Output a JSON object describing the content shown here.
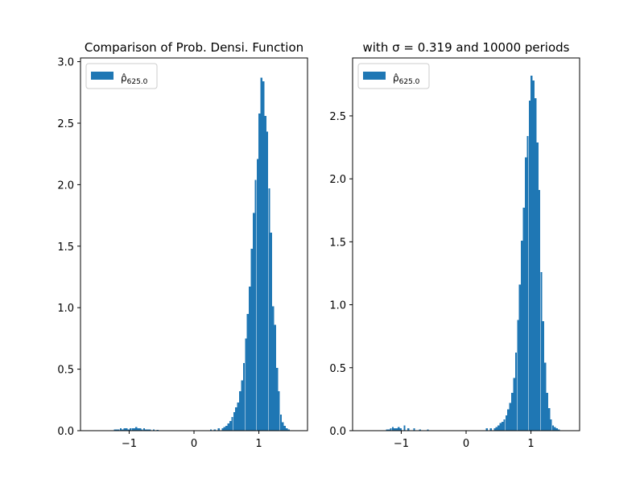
{
  "chart_data": [
    {
      "type": "bar",
      "title": "Comparison of Prob. Densi. Function",
      "xlim": [
        -1.75,
        1.75
      ],
      "ylim": [
        0,
        3.03
      ],
      "xticks": [
        -1,
        0,
        1
      ],
      "xtick_labels": [
        "−1",
        "0",
        "1"
      ],
      "yticks": [
        0,
        0.5,
        1.0,
        1.5,
        2.0,
        2.5,
        3.0
      ],
      "ytick_labels": [
        "0.0",
        "0.5",
        "1.0",
        "1.5",
        "2.0",
        "2.5",
        "3.0"
      ],
      "legend": {
        "placement": "upper-left",
        "label": "ρ̂",
        "subscript": "625.0"
      },
      "colors": {
        "bar": "#1f77b4"
      },
      "bin_width": 0.0296,
      "bins": [
        {
          "x": -1.22,
          "y": 0.01
        },
        {
          "x": -1.19,
          "y": 0.01
        },
        {
          "x": -1.16,
          "y": 0.01
        },
        {
          "x": -1.13,
          "y": 0.02
        },
        {
          "x": -1.1,
          "y": 0.01
        },
        {
          "x": -1.07,
          "y": 0.02
        },
        {
          "x": -1.04,
          "y": 0.02
        },
        {
          "x": -1.01,
          "y": 0.01
        },
        {
          "x": -0.98,
          "y": 0.02
        },
        {
          "x": -0.95,
          "y": 0.02
        },
        {
          "x": -0.92,
          "y": 0.02
        },
        {
          "x": -0.89,
          "y": 0.03
        },
        {
          "x": -0.86,
          "y": 0.02
        },
        {
          "x": -0.83,
          "y": 0.02
        },
        {
          "x": -0.8,
          "y": 0.01
        },
        {
          "x": -0.77,
          "y": 0.02
        },
        {
          "x": -0.74,
          "y": 0.01
        },
        {
          "x": -0.71,
          "y": 0.01
        },
        {
          "x": -0.68,
          "y": 0.01
        },
        {
          "x": -0.62,
          "y": 0.01
        },
        {
          "x": -0.56,
          "y": 0.005
        },
        {
          "x": 0.26,
          "y": 0.01
        },
        {
          "x": 0.32,
          "y": 0.01
        },
        {
          "x": 0.38,
          "y": 0.02
        },
        {
          "x": 0.44,
          "y": 0.02
        },
        {
          "x": 0.47,
          "y": 0.03
        },
        {
          "x": 0.5,
          "y": 0.04
        },
        {
          "x": 0.53,
          "y": 0.06
        },
        {
          "x": 0.56,
          "y": 0.08
        },
        {
          "x": 0.59,
          "y": 0.11
        },
        {
          "x": 0.62,
          "y": 0.15
        },
        {
          "x": 0.65,
          "y": 0.19
        },
        {
          "x": 0.68,
          "y": 0.23
        },
        {
          "x": 0.71,
          "y": 0.32
        },
        {
          "x": 0.74,
          "y": 0.41
        },
        {
          "x": 0.77,
          "y": 0.55
        },
        {
          "x": 0.8,
          "y": 0.75
        },
        {
          "x": 0.83,
          "y": 0.95
        },
        {
          "x": 0.86,
          "y": 1.17
        },
        {
          "x": 0.89,
          "y": 1.48
        },
        {
          "x": 0.92,
          "y": 1.77
        },
        {
          "x": 0.95,
          "y": 2.04
        },
        {
          "x": 0.98,
          "y": 2.21
        },
        {
          "x": 1.01,
          "y": 2.58
        },
        {
          "x": 1.04,
          "y": 2.87
        },
        {
          "x": 1.07,
          "y": 2.84
        },
        {
          "x": 1.1,
          "y": 2.56
        },
        {
          "x": 1.13,
          "y": 2.43
        },
        {
          "x": 1.16,
          "y": 1.97
        },
        {
          "x": 1.19,
          "y": 1.61
        },
        {
          "x": 1.22,
          "y": 1.01
        },
        {
          "x": 1.25,
          "y": 0.86
        },
        {
          "x": 1.28,
          "y": 0.51
        },
        {
          "x": 1.31,
          "y": 0.32
        },
        {
          "x": 1.34,
          "y": 0.13
        },
        {
          "x": 1.37,
          "y": 0.07
        },
        {
          "x": 1.4,
          "y": 0.04
        },
        {
          "x": 1.43,
          "y": 0.02
        },
        {
          "x": 1.46,
          "y": 0.01
        }
      ]
    },
    {
      "type": "bar",
      "title": "with σ = 0.319 and 10000 periods",
      "xlim": [
        -1.75,
        1.75
      ],
      "ylim": [
        0,
        2.96
      ],
      "xticks": [
        -1,
        0,
        1
      ],
      "xtick_labels": [
        "−1",
        "0",
        "1"
      ],
      "yticks": [
        0,
        0.5,
        1.0,
        1.5,
        2.0,
        2.5
      ],
      "ytick_labels": [
        "0.0",
        "0.5",
        "1.0",
        "1.5",
        "2.0",
        "2.5"
      ],
      "legend": {
        "placement": "upper-left",
        "label": "ρ̂",
        "subscript": "625.0"
      },
      "colors": {
        "bar": "#1f77b4"
      },
      "bin_width": 0.0296,
      "bins": [
        {
          "x": -1.22,
          "y": 0.01
        },
        {
          "x": -1.19,
          "y": 0.01
        },
        {
          "x": -1.16,
          "y": 0.02
        },
        {
          "x": -1.13,
          "y": 0.03
        },
        {
          "x": -1.1,
          "y": 0.02
        },
        {
          "x": -1.07,
          "y": 0.02
        },
        {
          "x": -1.04,
          "y": 0.03
        },
        {
          "x": -1.01,
          "y": 0.02
        },
        {
          "x": -0.95,
          "y": 0.04
        },
        {
          "x": -0.89,
          "y": 0.02
        },
        {
          "x": -0.8,
          "y": 0.02
        },
        {
          "x": -0.71,
          "y": 0.01
        },
        {
          "x": -0.59,
          "y": 0.01
        },
        {
          "x": 0.32,
          "y": 0.02
        },
        {
          "x": 0.38,
          "y": 0.02
        },
        {
          "x": 0.44,
          "y": 0.02
        },
        {
          "x": 0.47,
          "y": 0.03
        },
        {
          "x": 0.5,
          "y": 0.04
        },
        {
          "x": 0.53,
          "y": 0.06
        },
        {
          "x": 0.56,
          "y": 0.07
        },
        {
          "x": 0.59,
          "y": 0.09
        },
        {
          "x": 0.62,
          "y": 0.12
        },
        {
          "x": 0.65,
          "y": 0.17
        },
        {
          "x": 0.68,
          "y": 0.22
        },
        {
          "x": 0.71,
          "y": 0.3
        },
        {
          "x": 0.74,
          "y": 0.42
        },
        {
          "x": 0.77,
          "y": 0.62
        },
        {
          "x": 0.8,
          "y": 0.88
        },
        {
          "x": 0.83,
          "y": 1.16
        },
        {
          "x": 0.86,
          "y": 1.51
        },
        {
          "x": 0.89,
          "y": 1.77
        },
        {
          "x": 0.92,
          "y": 2.17
        },
        {
          "x": 0.95,
          "y": 2.34
        },
        {
          "x": 0.98,
          "y": 2.62
        },
        {
          "x": 1.01,
          "y": 2.82
        },
        {
          "x": 1.04,
          "y": 2.78
        },
        {
          "x": 1.07,
          "y": 2.64
        },
        {
          "x": 1.1,
          "y": 2.29
        },
        {
          "x": 1.13,
          "y": 1.91
        },
        {
          "x": 1.16,
          "y": 1.26
        },
        {
          "x": 1.19,
          "y": 0.87
        },
        {
          "x": 1.22,
          "y": 0.54
        },
        {
          "x": 1.25,
          "y": 0.3
        },
        {
          "x": 1.28,
          "y": 0.18
        },
        {
          "x": 1.31,
          "y": 0.09
        },
        {
          "x": 1.34,
          "y": 0.04
        },
        {
          "x": 1.37,
          "y": 0.03
        },
        {
          "x": 1.4,
          "y": 0.02
        },
        {
          "x": 1.43,
          "y": 0.01
        }
      ]
    }
  ]
}
